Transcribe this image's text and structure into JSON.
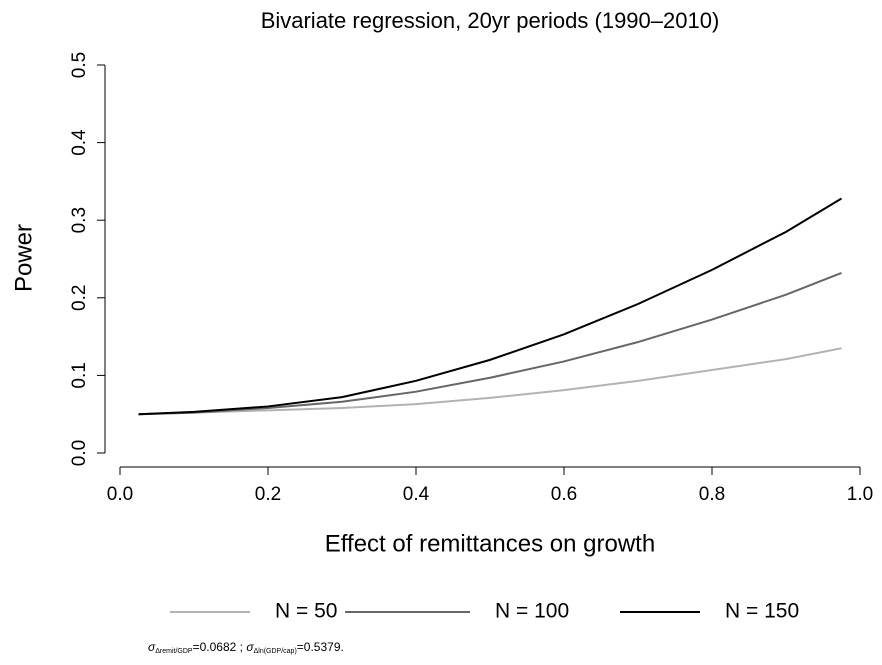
{
  "chart_data": {
    "type": "line",
    "title": "Bivariate regression, 20yr periods (1990–2010)",
    "x_label": "Effect of remittances on growth",
    "y_label": "Power",
    "x": [
      0.025,
      0.1,
      0.2,
      0.3,
      0.4,
      0.5,
      0.6,
      0.7,
      0.8,
      0.9,
      0.975
    ],
    "series": [
      {
        "name": "N = 50",
        "color": "#b3b3b3",
        "values": [
          0.05,
          0.052,
          0.055,
          0.058,
          0.063,
          0.071,
          0.081,
          0.093,
          0.107,
          0.121,
          0.135
        ]
      },
      {
        "name": "N = 100",
        "color": "#666666",
        "values": [
          0.05,
          0.052,
          0.058,
          0.066,
          0.079,
          0.097,
          0.118,
          0.143,
          0.172,
          0.204,
          0.232
        ]
      },
      {
        "name": "N = 150",
        "color": "#000000",
        "values": [
          0.05,
          0.053,
          0.06,
          0.072,
          0.093,
          0.12,
          0.153,
          0.192,
          0.236,
          0.285,
          0.328
        ]
      }
    ],
    "xlim": [
      0,
      1
    ],
    "ylim": [
      0,
      0.5
    ],
    "xticks": [
      {
        "value": 0,
        "label": "0.0"
      },
      0.2,
      0.4,
      0.6,
      0.8,
      {
        "value": 1,
        "label": "1.0"
      }
    ],
    "yticks": [
      {
        "value": 0,
        "label": "0.0"
      },
      0.1,
      0.2,
      0.3,
      0.4,
      0.5
    ],
    "legend": "bottom",
    "note": [
      {
        "symbol": "σ",
        "sub": "Δremit/GDP",
        "text": "=0.0682 ;"
      },
      {
        "symbol": "σ",
        "sub": "Δln(GDP/cap)",
        "text": "=0.5379."
      }
    ]
  }
}
